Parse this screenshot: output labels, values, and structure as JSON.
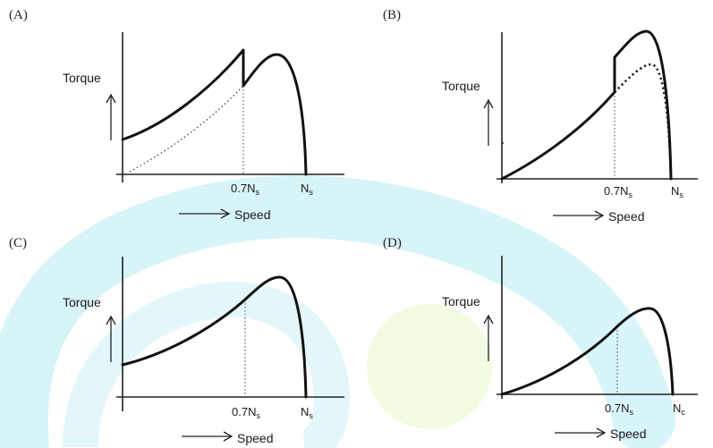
{
  "colors": {
    "background": "#ffffff",
    "watermark": "#b8ecf4",
    "watermark_accent": "#e6f7c0",
    "ink": "#111111"
  },
  "panels": [
    {
      "id": "A",
      "label": "(A)",
      "y_axis_label": "Torque",
      "x_axis_label": "Speed",
      "tick_07": "0.7N",
      "tick_07_sub": "s",
      "tick_ns": "N",
      "tick_ns_sub": "s"
    },
    {
      "id": "B",
      "label": "(B)",
      "y_axis_label": "Torque",
      "x_axis_label": "Speed",
      "tick_07": "0.7N",
      "tick_07_sub": "s",
      "tick_ns": "N",
      "tick_ns_sub": "s"
    },
    {
      "id": "C",
      "label": "(C)",
      "y_axis_label": "Torque",
      "x_axis_label": "Speed",
      "tick_07": "0.7N",
      "tick_07_sub": "s",
      "tick_ns": "N",
      "tick_ns_sub": "s"
    },
    {
      "id": "D",
      "label": "(D)",
      "y_axis_label": "Torque",
      "x_axis_label": "Speed",
      "tick_07": "0.7N",
      "tick_07_sub": "s",
      "tick_ns": "N",
      "tick_ns_sub": "c"
    }
  ]
}
